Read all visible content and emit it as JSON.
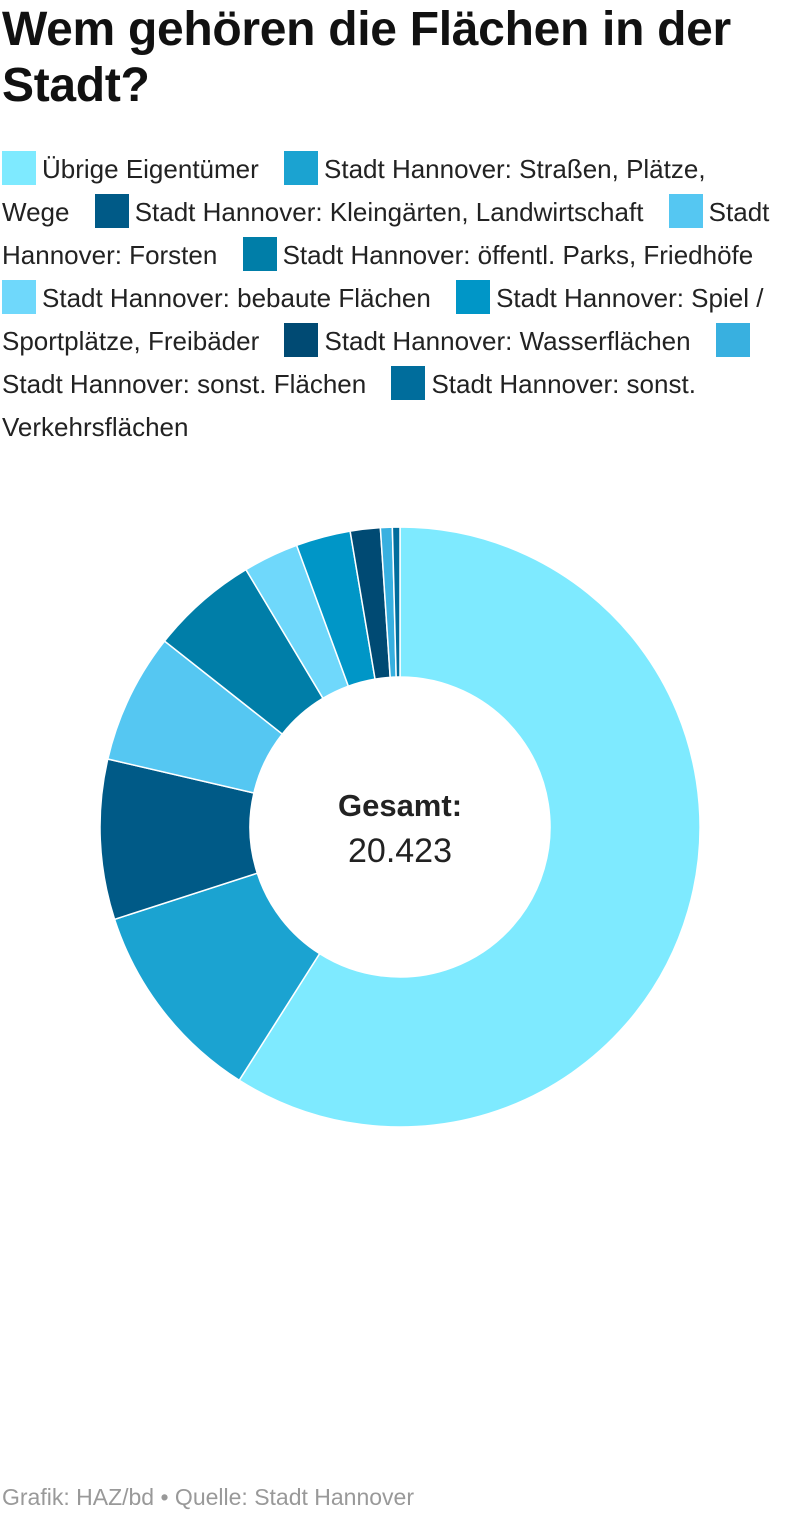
{
  "title": "Wem gehören die Flächen in der Stadt?",
  "footer": "Grafik: HAZ/bd • Quelle: Stadt Hannover",
  "chart_data": {
    "type": "pie",
    "donut": true,
    "title": "Wem gehören die Flächen in der Stadt?",
    "center_label": "Gesamt:",
    "center_value": "20.423",
    "total": 20423,
    "legend_position": "top",
    "slices": [
      {
        "name": "Übrige Eigentümer",
        "value": 12050,
        "color": "#7eeaff"
      },
      {
        "name": "Stadt Hannover: Straßen, Plätze, Wege",
        "value": 2250,
        "color": "#1ba3d1"
      },
      {
        "name": "Stadt Hannover: Kleingärten, Landwirtschaft",
        "value": 1760,
        "color": "#005a87"
      },
      {
        "name": "Stadt Hannover: Forsten",
        "value": 1430,
        "color": "#55c7f2"
      },
      {
        "name": "Stadt Hannover: öffentl. Parks, Friedhöfe",
        "value": 1180,
        "color": "#007ea8"
      },
      {
        "name": "Stadt Hannover: bebaute Flächen",
        "value": 610,
        "color": "#6fd8fb"
      },
      {
        "name": "Stadt Hannover: Spiel / Sportplätze, Freibäder",
        "value": 600,
        "color": "#0096c7"
      },
      {
        "name": "Stadt Hannover: Wasserflächen",
        "value": 330,
        "color": "#004a73"
      },
      {
        "name": "Stadt Hannover: sonst. Flächen",
        "value": 130,
        "color": "#38b0e0"
      },
      {
        "name": "Stadt Hannover: sonst. Verkehrsflächen",
        "value": 83,
        "color": "#006d9c"
      }
    ]
  }
}
